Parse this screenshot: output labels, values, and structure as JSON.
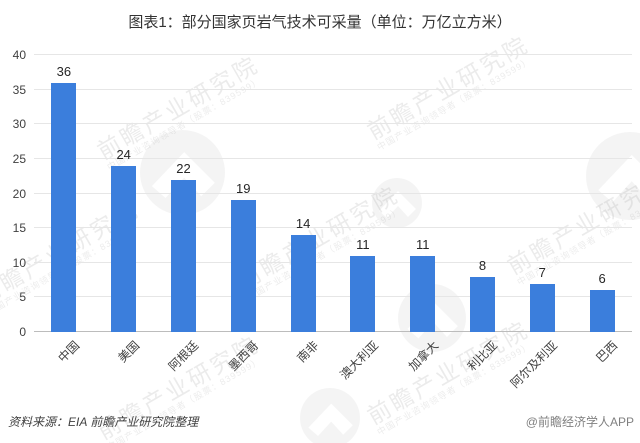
{
  "chart_data": {
    "type": "bar",
    "title": "图表1：部分国家页岩气技术可采量（单位：万亿立方米）",
    "categories": [
      "中国",
      "美国",
      "阿根廷",
      "墨西哥",
      "南非",
      "澳大利亚",
      "加拿大",
      "利比亚",
      "阿尔及利亚",
      "巴西"
    ],
    "values": [
      36,
      24,
      22,
      19,
      14,
      11,
      11,
      8,
      7,
      6
    ],
    "xlabel": "",
    "ylabel": "",
    "ylim": [
      0,
      40
    ],
    "yticks": [
      0,
      5,
      10,
      15,
      20,
      25,
      30,
      35,
      40
    ],
    "x_tick_rotation": -45,
    "grid": true,
    "legend": "none",
    "bar_color": "#3b7edc",
    "gridline_color": "#e6e6e6",
    "axisline_color": "#bcbcbc",
    "value_label_color": "#262626",
    "tick_label_color": "#404040"
  },
  "footer": {
    "source": "资料来源：EIA  前瞻产业研究院整理",
    "brand": "@前瞻经济学人APP"
  },
  "watermark": {
    "main": "前瞻产业研究院",
    "sub": "中国产业咨询领导者（股票：839599）",
    "logo": "qianzhan-swoosh-icon"
  }
}
